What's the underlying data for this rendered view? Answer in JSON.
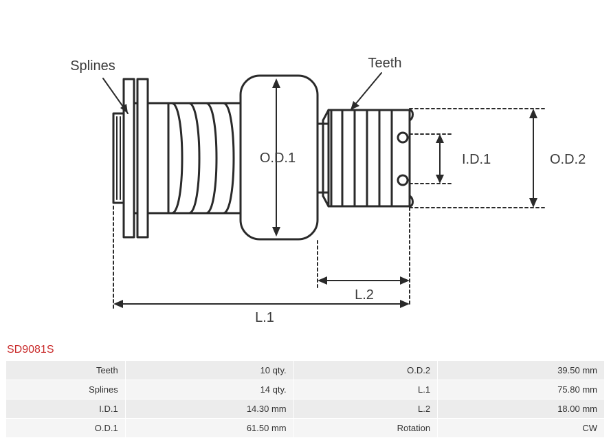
{
  "partCode": "SD9081S",
  "partCodeColor": "#c92a2a",
  "diagram": {
    "label_splines": "Splines",
    "label_teeth": "Teeth",
    "dim_od1": "O.D.1",
    "dim_od2": "O.D.2",
    "dim_id1": "I.D.1",
    "dim_l1": "L.1",
    "dim_l2": "L.2",
    "label_color": "#3a3a3a",
    "label_fontsize": 20,
    "dim_fontsize": 20,
    "stroke_color": "#2a2a2a",
    "stroke_width": 3,
    "dash_pattern": "4 4"
  },
  "table": {
    "row_bg_even": "#ececec",
    "row_bg_odd": "#f5f5f5",
    "text_color": "#333333",
    "rows": [
      {
        "l": "Teeth",
        "v": "10 qty.",
        "l2": "O.D.2",
        "v2": "39.50 mm"
      },
      {
        "l": "Splines",
        "v": "14 qty.",
        "l2": "L.1",
        "v2": "75.80 mm"
      },
      {
        "l": "I.D.1",
        "v": "14.30 mm",
        "l2": "L.2",
        "v2": "18.00 mm"
      },
      {
        "l": "O.D.1",
        "v": "61.50 mm",
        "l2": "Rotation",
        "v2": "CW"
      }
    ]
  }
}
